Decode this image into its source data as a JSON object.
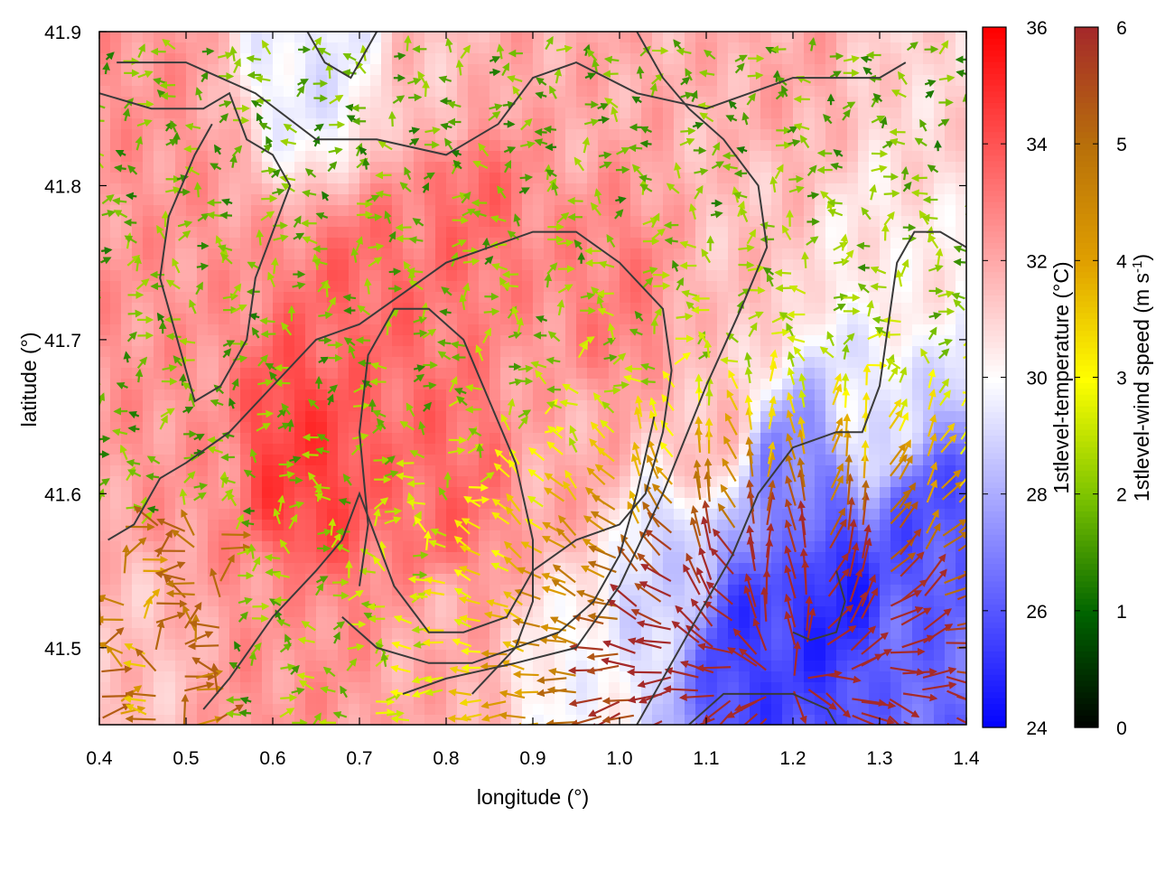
{
  "chart_data": {
    "type": "heatmap",
    "title": "",
    "xlabel": "longitude (°)",
    "ylabel": "latitude (°)",
    "xlim": [
      0.4,
      1.4
    ],
    "ylim": [
      41.45,
      41.9
    ],
    "x_ticks": [
      {
        "value": 0.4,
        "label": "0.4"
      },
      {
        "value": 0.5,
        "label": "0.5"
      },
      {
        "value": 0.6,
        "label": "0.6"
      },
      {
        "value": 0.7,
        "label": "0.7"
      },
      {
        "value": 0.8,
        "label": "0.8"
      },
      {
        "value": 0.9,
        "label": "0.9"
      },
      {
        "value": 1.0,
        "label": "1.0"
      },
      {
        "value": 1.1,
        "label": "1.1"
      },
      {
        "value": 1.2,
        "label": "1.2"
      },
      {
        "value": 1.3,
        "label": "1.3"
      },
      {
        "value": 1.4,
        "label": "1.4"
      }
    ],
    "y_ticks": [
      {
        "value": 41.5,
        "label": "41.5"
      },
      {
        "value": 41.6,
        "label": "41.6"
      },
      {
        "value": 41.7,
        "label": "41.7"
      },
      {
        "value": 41.8,
        "label": "41.8"
      },
      {
        "value": 41.9,
        "label": "41.9"
      }
    ],
    "grid": false,
    "temperature": {
      "label": "1stlevel-temperature (°C)",
      "range": [
        24,
        36
      ],
      "ticks": [
        {
          "value": 24,
          "label": "24"
        },
        {
          "value": 26,
          "label": "26"
        },
        {
          "value": 28,
          "label": "28"
        },
        {
          "value": 30,
          "label": "30"
        },
        {
          "value": 32,
          "label": "32"
        },
        {
          "value": 34,
          "label": "34"
        },
        {
          "value": 36,
          "label": "36"
        }
      ],
      "colors": [
        "#0000ff",
        "#ffffff",
        "#ff0000"
      ],
      "field_nodes": [
        {
          "lon": 0.45,
          "lat": 41.85,
          "value": 32.5
        },
        {
          "lon": 0.65,
          "lat": 41.88,
          "value": 29.5
        },
        {
          "lon": 0.8,
          "lat": 41.85,
          "value": 31.5
        },
        {
          "lon": 0.95,
          "lat": 41.88,
          "value": 32
        },
        {
          "lon": 1.2,
          "lat": 41.88,
          "value": 32
        },
        {
          "lon": 1.35,
          "lat": 41.85,
          "value": 31
        },
        {
          "lon": 0.5,
          "lat": 41.75,
          "value": 32.5
        },
        {
          "lon": 0.7,
          "lat": 41.72,
          "value": 33.5
        },
        {
          "lon": 0.82,
          "lat": 41.8,
          "value": 33.5
        },
        {
          "lon": 1.0,
          "lat": 41.72,
          "value": 33
        },
        {
          "lon": 1.15,
          "lat": 41.75,
          "value": 31.5
        },
        {
          "lon": 1.32,
          "lat": 41.75,
          "value": 30.5
        },
        {
          "lon": 0.5,
          "lat": 41.62,
          "value": 32.5
        },
        {
          "lon": 0.63,
          "lat": 41.62,
          "value": 34.5
        },
        {
          "lon": 0.8,
          "lat": 41.6,
          "value": 33.5
        },
        {
          "lon": 0.95,
          "lat": 41.62,
          "value": 32
        },
        {
          "lon": 1.1,
          "lat": 41.65,
          "value": 31.5
        },
        {
          "lon": 1.3,
          "lat": 41.65,
          "value": 29.5
        },
        {
          "lon": 0.45,
          "lat": 41.5,
          "value": 31.5
        },
        {
          "lon": 0.6,
          "lat": 41.5,
          "value": 32.5
        },
        {
          "lon": 0.8,
          "lat": 41.5,
          "value": 32
        },
        {
          "lon": 0.95,
          "lat": 41.47,
          "value": 30
        },
        {
          "lon": 1.05,
          "lat": 41.55,
          "value": 29
        },
        {
          "lon": 1.15,
          "lat": 41.5,
          "value": 25.5
        },
        {
          "lon": 1.25,
          "lat": 41.53,
          "value": 25
        },
        {
          "lon": 1.35,
          "lat": 41.58,
          "value": 26
        },
        {
          "lon": 1.2,
          "lat": 41.6,
          "value": 27
        },
        {
          "lon": 1.33,
          "lat": 41.48,
          "value": 26.5
        }
      ]
    },
    "wind_speed": {
      "label": "1stlevel-wind speed (m s-1)",
      "label_main": "1stlevel-wind speed (m s",
      "label_sup": "-1",
      "label_end": ")",
      "range": [
        0,
        6
      ],
      "ticks": [
        {
          "value": 0,
          "label": "0"
        },
        {
          "value": 1,
          "label": "1"
        },
        {
          "value": 2,
          "label": "2"
        },
        {
          "value": 3,
          "label": "3"
        },
        {
          "value": 4,
          "label": "4"
        },
        {
          "value": 5,
          "label": "5"
        },
        {
          "value": 6,
          "label": "6"
        }
      ],
      "colors": [
        "#000000",
        "#006400",
        "#7cc300",
        "#ffff00",
        "#e0a000",
        "#b8700a",
        "#a52a2a"
      ],
      "arrow_grid": {
        "lon_step": 0.01,
        "lat_step": 0.007
      }
    },
    "contours": [
      {
        "name": "contour-west-loop",
        "points": [
          [
            0.4,
            41.86
          ],
          [
            0.46,
            41.85
          ],
          [
            0.52,
            41.85
          ],
          [
            0.55,
            41.86
          ],
          [
            0.57,
            41.83
          ],
          [
            0.6,
            41.82
          ],
          [
            0.62,
            41.8
          ],
          [
            0.6,
            41.77
          ],
          [
            0.58,
            41.74
          ],
          [
            0.57,
            41.7
          ],
          [
            0.54,
            41.67
          ],
          [
            0.51,
            41.66
          ],
          [
            0.49,
            41.7
          ],
          [
            0.47,
            41.74
          ],
          [
            0.48,
            41.78
          ],
          [
            0.51,
            41.82
          ],
          [
            0.53,
            41.84
          ]
        ]
      },
      {
        "name": "contour-north-strip",
        "points": [
          [
            0.42,
            41.88
          ],
          [
            0.5,
            41.88
          ],
          [
            0.58,
            41.86
          ],
          [
            0.65,
            41.83
          ],
          [
            0.72,
            41.83
          ],
          [
            0.8,
            41.82
          ],
          [
            0.86,
            41.84
          ],
          [
            0.9,
            41.87
          ],
          [
            0.95,
            41.88
          ],
          [
            1.02,
            41.86
          ],
          [
            1.1,
            41.85
          ],
          [
            1.2,
            41.87
          ],
          [
            1.3,
            41.87
          ],
          [
            1.33,
            41.88
          ]
        ]
      },
      {
        "name": "contour-north-cap",
        "points": [
          [
            0.64,
            41.9
          ],
          [
            0.66,
            41.88
          ],
          [
            0.69,
            41.87
          ],
          [
            0.71,
            41.89
          ],
          [
            0.72,
            41.9
          ]
        ]
      },
      {
        "name": "contour-main-basin",
        "points": [
          [
            0.41,
            41.57
          ],
          [
            0.44,
            41.58
          ],
          [
            0.47,
            41.61
          ],
          [
            0.5,
            41.62
          ],
          [
            0.55,
            41.64
          ],
          [
            0.6,
            41.67
          ],
          [
            0.65,
            41.7
          ],
          [
            0.7,
            41.71
          ],
          [
            0.75,
            41.73
          ],
          [
            0.8,
            41.75
          ],
          [
            0.85,
            41.76
          ],
          [
            0.9,
            41.77
          ],
          [
            0.95,
            41.77
          ],
          [
            1.0,
            41.75
          ],
          [
            1.05,
            41.72
          ],
          [
            1.06,
            41.68
          ],
          [
            1.05,
            41.64
          ],
          [
            1.03,
            41.6
          ],
          [
            1.0,
            41.58
          ],
          [
            0.95,
            41.57
          ],
          [
            0.9,
            41.55
          ],
          [
            0.87,
            41.52
          ],
          [
            0.82,
            41.51
          ],
          [
            0.78,
            41.51
          ],
          [
            0.74,
            41.54
          ],
          [
            0.72,
            41.57
          ],
          [
            0.7,
            41.6
          ],
          [
            0.68,
            41.57
          ],
          [
            0.65,
            41.55
          ],
          [
            0.6,
            41.52
          ],
          [
            0.55,
            41.48
          ],
          [
            0.52,
            41.46
          ]
        ]
      },
      {
        "name": "contour-inner-ring",
        "points": [
          [
            0.68,
            41.52
          ],
          [
            0.72,
            41.5
          ],
          [
            0.78,
            41.49
          ],
          [
            0.83,
            41.49
          ],
          [
            0.88,
            41.5
          ],
          [
            0.9,
            41.53
          ],
          [
            0.9,
            41.57
          ],
          [
            0.88,
            41.62
          ],
          [
            0.85,
            41.66
          ],
          [
            0.82,
            41.7
          ],
          [
            0.78,
            41.72
          ],
          [
            0.74,
            41.72
          ],
          [
            0.71,
            41.69
          ],
          [
            0.7,
            41.64
          ],
          [
            0.71,
            41.58
          ],
          [
            0.7,
            41.54
          ]
        ]
      },
      {
        "name": "contour-east-ridge",
        "points": [
          [
            0.75,
            41.47
          ],
          [
            0.8,
            41.48
          ],
          [
            0.88,
            41.49
          ],
          [
            0.95,
            41.5
          ],
          [
            1.0,
            41.54
          ],
          [
            1.05,
            41.6
          ],
          [
            1.1,
            41.67
          ],
          [
            1.14,
            41.72
          ],
          [
            1.17,
            41.76
          ],
          [
            1.16,
            41.8
          ],
          [
            1.12,
            41.83
          ],
          [
            1.08,
            41.85
          ],
          [
            1.05,
            41.87
          ],
          [
            1.02,
            41.9
          ]
        ]
      },
      {
        "name": "contour-southeast",
        "points": [
          [
            1.02,
            41.45
          ],
          [
            1.05,
            41.48
          ],
          [
            1.09,
            41.52
          ],
          [
            1.13,
            41.56
          ],
          [
            1.16,
            41.6
          ],
          [
            1.2,
            41.63
          ],
          [
            1.25,
            41.64
          ],
          [
            1.28,
            41.64
          ],
          [
            1.3,
            41.67
          ],
          [
            1.31,
            41.71
          ],
          [
            1.32,
            41.75
          ],
          [
            1.34,
            41.77
          ],
          [
            1.37,
            41.77
          ],
          [
            1.4,
            41.76
          ]
        ]
      },
      {
        "name": "contour-southeast-loop",
        "points": [
          [
            1.08,
            41.45
          ],
          [
            1.12,
            41.47
          ],
          [
            1.16,
            41.47
          ],
          [
            1.2,
            41.47
          ],
          [
            1.24,
            41.46
          ],
          [
            1.25,
            41.45
          ]
        ]
      },
      {
        "name": "contour-south-wedge",
        "points": [
          [
            0.83,
            41.47
          ],
          [
            0.88,
            41.5
          ],
          [
            0.93,
            41.51
          ],
          [
            0.97,
            41.53
          ],
          [
            1.0,
            41.56
          ],
          [
            1.02,
            41.6
          ],
          [
            1.04,
            41.65
          ]
        ]
      },
      {
        "name": "contour-southeast-hook",
        "points": [
          [
            1.2,
            41.51
          ],
          [
            1.22,
            41.505
          ],
          [
            1.25,
            41.51
          ],
          [
            1.26,
            41.53
          ],
          [
            1.25,
            41.55
          ]
        ]
      }
    ]
  }
}
